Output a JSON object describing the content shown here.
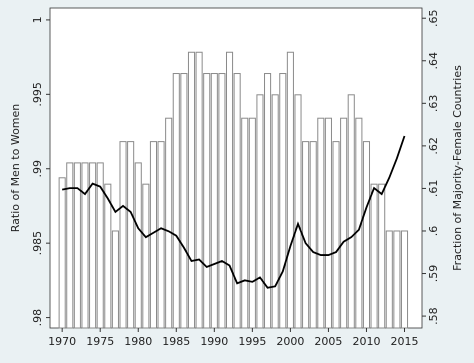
{
  "chart_data": {
    "type": "combo",
    "x": [
      1970,
      1971,
      1972,
      1973,
      1974,
      1975,
      1976,
      1977,
      1978,
      1979,
      1980,
      1981,
      1982,
      1983,
      1984,
      1985,
      1986,
      1987,
      1988,
      1989,
      1990,
      1991,
      1992,
      1993,
      1994,
      1995,
      1996,
      1997,
      1998,
      1999,
      2000,
      2001,
      2002,
      2003,
      2004,
      2005,
      2006,
      2007,
      2008,
      2009,
      2010,
      2011,
      2012,
      2013,
      2014,
      2015
    ],
    "xlim": [
      1968.4,
      2017.3
    ],
    "xticks": [
      1970,
      1975,
      1980,
      1985,
      1990,
      1995,
      2000,
      2005,
      2010,
      2015
    ],
    "ylabel": "Ratio of Men to Women",
    "y2label": "Fraction of Majority-Female Countries",
    "ylim": [
      0.9793,
      1.0008
    ],
    "yticks": [
      {
        "value": 0.98,
        "label": ".98"
      },
      {
        "value": 0.985,
        "label": ".985"
      },
      {
        "value": 0.99,
        "label": ".99"
      },
      {
        "value": 0.995,
        "label": ".995"
      },
      1
    ],
    "y2lim": [
      0.5772,
      0.6524
    ],
    "y2ticks": [
      {
        "value": 0.58,
        "label": ".58"
      },
      {
        "value": 0.59,
        "label": ".59"
      },
      {
        "value": 0.6,
        "label": ".6"
      },
      {
        "value": 0.61,
        "label": ".61"
      },
      {
        "value": 0.62,
        "label": ".62"
      },
      {
        "value": 0.63,
        "label": ".63"
      },
      {
        "value": 0.64,
        "label": ".64"
      },
      {
        "value": 0.65,
        "label": ".65"
      }
    ],
    "series": [
      {
        "type": "bar",
        "axis": "y2",
        "color": "#ffffff",
        "edgecolor": "#8a8a8a",
        "values": [
          0.6125,
          0.616,
          0.616,
          0.616,
          0.616,
          0.616,
          0.611,
          0.6,
          0.621,
          0.621,
          0.616,
          0.611,
          0.621,
          0.621,
          0.6265,
          0.637,
          0.637,
          0.642,
          0.642,
          0.637,
          0.637,
          0.637,
          0.642,
          0.637,
          0.6265,
          0.6265,
          0.632,
          0.637,
          0.632,
          0.637,
          0.642,
          0.632,
          0.621,
          0.621,
          0.6265,
          0.6265,
          0.621,
          0.6265,
          0.632,
          0.6265,
          0.621,
          0.611,
          0.611,
          0.6,
          0.6,
          0.6
        ]
      },
      {
        "type": "line",
        "axis": "y",
        "color": "#000000",
        "values": [
          0.9886,
          0.9887,
          0.9887,
          0.9883,
          0.989,
          0.9888,
          0.988,
          0.9871,
          0.9875,
          0.9871,
          0.986,
          0.9854,
          0.9857,
          0.986,
          0.9858,
          0.9855,
          0.9847,
          0.9838,
          0.9839,
          0.9834,
          0.9836,
          0.9838,
          0.9835,
          0.9823,
          0.9825,
          0.9824,
          0.9827,
          0.982,
          0.9821,
          0.9831,
          0.9848,
          0.9863,
          0.985,
          0.9844,
          0.9842,
          0.9842,
          0.9844,
          0.9851,
          0.9854,
          0.9859,
          0.9874,
          0.9887,
          0.9883,
          0.9894,
          0.9907,
          0.9922
        ]
      }
    ]
  }
}
